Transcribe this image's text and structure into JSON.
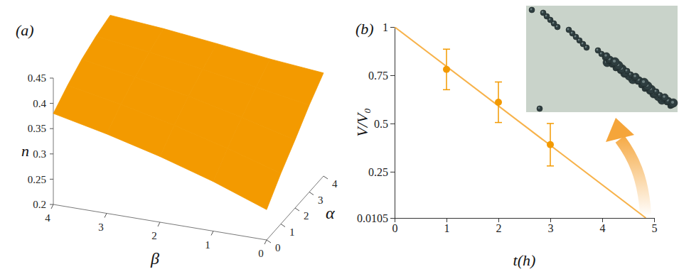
{
  "chart_data": [
    {
      "type": "surface",
      "title": "(a)",
      "x_label": "α",
      "y_label": "β",
      "z_label": "n",
      "x": [
        0,
        1,
        2,
        3,
        4
      ],
      "y": [
        0,
        1,
        2,
        3,
        4
      ],
      "z": [
        [
          0.26,
          0.3,
          0.335,
          0.372,
          0.404
        ],
        [
          0.298,
          0.332,
          0.362,
          0.39,
          0.414
        ],
        [
          0.33,
          0.36,
          0.386,
          0.408,
          0.427
        ],
        [
          0.357,
          0.384,
          0.406,
          0.424,
          0.439
        ],
        [
          0.38,
          0.404,
          0.424,
          0.438,
          0.448
        ]
      ],
      "xlim": [
        0,
        4
      ],
      "ylim": [
        0,
        4
      ],
      "zlim": [
        0.2,
        0.45
      ],
      "xticks": [
        0,
        1,
        2,
        3,
        4
      ],
      "yticks": [
        0,
        1,
        2,
        3,
        4
      ],
      "zticks": [
        0.2,
        0.25,
        0.3,
        0.35,
        0.4,
        0.45
      ],
      "color": "#f39a00"
    },
    {
      "type": "line",
      "title": "(b)",
      "x_label": "t(h)",
      "y_label": "V/V₀",
      "xlim": [
        0,
        5
      ],
      "ylim": [
        0.0105,
        1
      ],
      "xticks": [
        0,
        1,
        2,
        3,
        4,
        5
      ],
      "yticks": [
        0.0105,
        0.25,
        0.5,
        0.75,
        1
      ],
      "series": [
        {
          "type": "line",
          "color": "#f7b24a",
          "x": [
            0,
            4.84
          ],
          "values": [
            1,
            0.0105
          ]
        },
        {
          "type": "scatter",
          "marker": "circle",
          "color": "#f39a00",
          "x": [
            1,
            2,
            3
          ],
          "values": [
            0.78,
            0.61,
            0.39
          ],
          "errors": [
            0.105,
            0.105,
            0.11
          ]
        }
      ]
    }
  ]
}
